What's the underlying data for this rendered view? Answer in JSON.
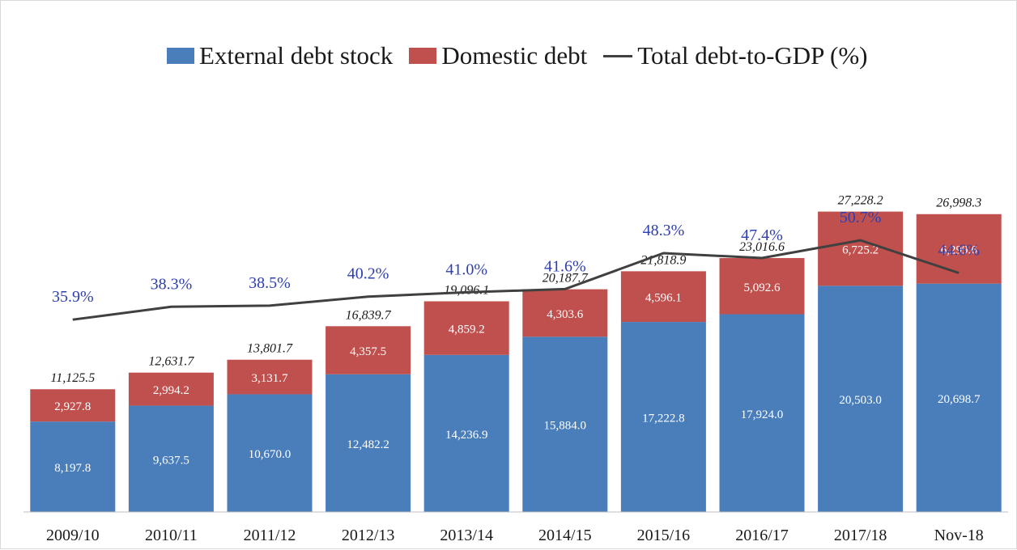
{
  "legend": {
    "external": "External debt stock",
    "domestic": "Domestic debt",
    "ratio": "Total debt-to-GDP (%)"
  },
  "colors": {
    "external": "#4a7ebb",
    "domestic": "#c0504d",
    "line": "#404040",
    "ratio_label": "#2e3fb0",
    "bar_label": "#ffffff",
    "total_label": "#1a1a1a"
  },
  "chart_data": {
    "type": "bar",
    "stacked": true,
    "categories": [
      "2009/10",
      "2010/11",
      "2011/12",
      "2012/13",
      "2013/14",
      "2014/15",
      "2015/16",
      "2016/17",
      "2017/18",
      "Nov-18"
    ],
    "series": [
      {
        "name": "External debt stock",
        "values": [
          8197.8,
          9637.5,
          10670.0,
          12482.2,
          14236.9,
          15884.0,
          17222.8,
          17924.0,
          20503.0,
          20698.7
        ],
        "labels": [
          "8,197.8",
          "9,637.5",
          "10,670.0",
          "12,482.2",
          "14,236.9",
          "15,884.0",
          "17,222.8",
          "17,924.0",
          "20,503.0",
          "20,698.7"
        ]
      },
      {
        "name": "Domestic debt",
        "values": [
          2927.8,
          2994.2,
          3131.7,
          4357.5,
          4859.2,
          4303.6,
          4596.1,
          5092.6,
          6725.2,
          6299.6
        ],
        "labels": [
          "2,927.8",
          "2,994.2",
          "3,131.7",
          "4,357.5",
          "4,859.2",
          "4,303.6",
          "4,596.1",
          "5,092.6",
          "6,725.2",
          "6,299.6"
        ]
      }
    ],
    "totals": [
      11125.5,
      12631.7,
      13801.7,
      16839.7,
      19096.1,
      20187.7,
      21818.9,
      23016.6,
      27228.2,
      26998.3
    ],
    "total_labels": [
      "11,125.5",
      "12,631.7",
      "13,801.7",
      "16,839.7",
      "19,096.1",
      "20,187.7",
      "21,818.9",
      "23,016.6",
      "27,228.2",
      "26,998.3"
    ],
    "line_series": {
      "name": "Total debt-to-GDP (%)",
      "values": [
        35.9,
        38.3,
        38.5,
        40.2,
        41.0,
        41.6,
        48.3,
        47.4,
        50.7,
        44.6
      ],
      "labels": [
        "35.9%",
        "38.3%",
        "38.5%",
        "40.2%",
        "41.0%",
        "41.6%",
        "48.3%",
        "47.4%",
        "50.7%",
        "44.6%"
      ]
    },
    "ylim": [
      0,
      32500
    ],
    "line_ylim": [
      0,
      100
    ],
    "grid": false,
    "legend_position": "top"
  }
}
